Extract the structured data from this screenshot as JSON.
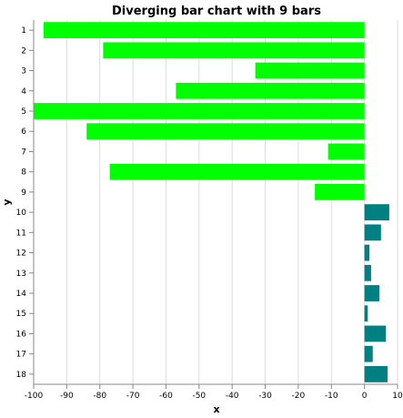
{
  "chart_data": {
    "type": "bar",
    "orientation": "horizontal",
    "title": "Diverging bar chart with 9 bars",
    "xlabel": "x",
    "ylabel": "y",
    "categories": [
      "1",
      "2",
      "3",
      "4",
      "5",
      "6",
      "7",
      "8",
      "9",
      "10",
      "11",
      "12",
      "13",
      "14",
      "15",
      "16",
      "17",
      "18"
    ],
    "values": [
      -97,
      -79,
      -33,
      -57,
      -100,
      -84,
      -11,
      -77,
      -15,
      7.5,
      5,
      1.5,
      2,
      4.5,
      1,
      6.5,
      2.5,
      7
    ],
    "xlim": [
      -100,
      10
    ],
    "xticks": [
      "-100",
      "-90",
      "-80",
      "-70",
      "-60",
      "-50",
      "-40",
      "-30",
      "-20",
      "-10",
      "0",
      "10"
    ],
    "grid": true,
    "colors": {
      "negative": "#00ff00",
      "positive": "#008080"
    }
  }
}
